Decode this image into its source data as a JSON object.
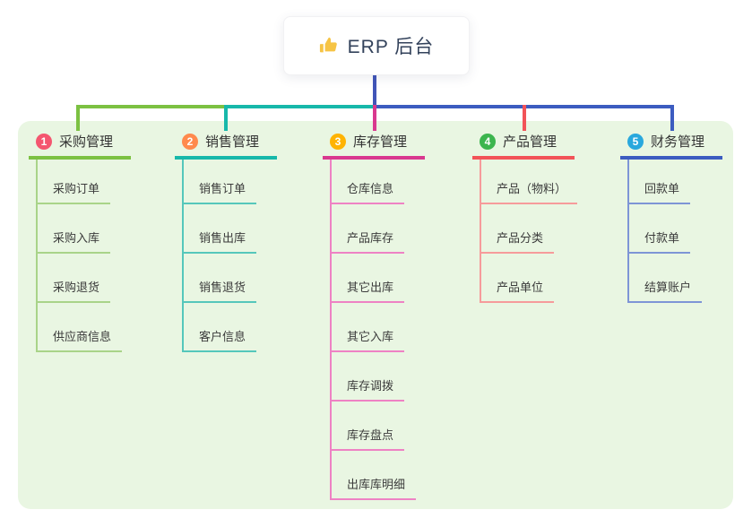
{
  "root": {
    "icon": "thumbs-up-icon",
    "title": "ERP 后台"
  },
  "colors": {
    "page_background": "#ffffff",
    "panel_background": "#e9f6e2",
    "trunk": "#4155b8",
    "root_title_text": "#33425b",
    "branch_label_text": "#333333",
    "child_label_text": "#3b3b3b",
    "thumb_icon": "#f6c445"
  },
  "branches": [
    {
      "badge": "1",
      "badge_color": "#f4566f",
      "label": "采购管理",
      "line_color": "#7cc142",
      "child_line_color": "#a9d489",
      "children": [
        "采购订单",
        "采购入库",
        "采购退货",
        "供应商信息"
      ]
    },
    {
      "badge": "2",
      "badge_color": "#ff8a4d",
      "label": "销售管理",
      "line_color": "#17b8aa",
      "child_line_color": "#55c7bb",
      "children": [
        "销售订单",
        "销售出库",
        "销售退货",
        "客户信息"
      ]
    },
    {
      "badge": "3",
      "badge_color": "#ffb302",
      "label": "库存管理",
      "line_color": "#d9388f",
      "child_line_color": "#ee82c4",
      "children": [
        "仓库信息",
        "产品库存",
        "其它出库",
        "其它入库",
        "库存调拨",
        "库存盘点",
        "出库库明细"
      ]
    },
    {
      "badge": "4",
      "badge_color": "#3cb54e",
      "label": "产品管理",
      "line_color": "#f25358",
      "child_line_color": "#f69b9b",
      "children": [
        "产品（物料）",
        "产品分类",
        "产品单位"
      ]
    },
    {
      "badge": "5",
      "badge_color": "#29a8dd",
      "label": "财务管理",
      "line_color": "#3c5cc0",
      "child_line_color": "#7e95d6",
      "children": [
        "回款单",
        "付款单",
        "结算账户"
      ]
    }
  ]
}
